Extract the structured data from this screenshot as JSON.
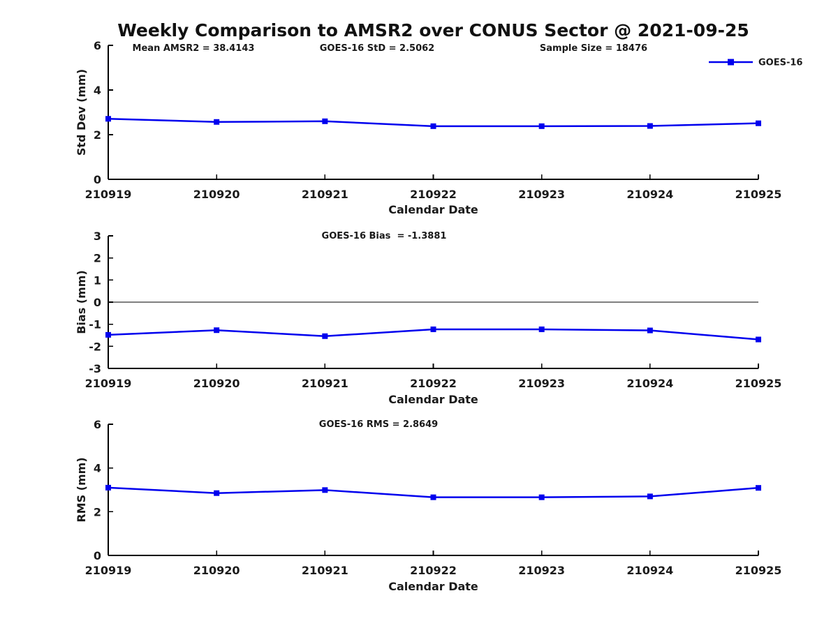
{
  "title": "Weekly Comparison to AMSR2 over CONUS Sector @ 2021-09-25",
  "legend": {
    "label": "GOES-16",
    "marker": "square-icon"
  },
  "colors": {
    "line": "#0000EE",
    "axis": "#000000",
    "text": "#1a1a1a",
    "background": "#FFFFFF"
  },
  "chart_data": [
    {
      "type": "line",
      "name": "std-dev",
      "ylabel": "Std Dev (mm)",
      "xlabel": "Calendar Date",
      "ylim": [
        0,
        6
      ],
      "yticks": [
        0,
        2,
        4,
        6
      ],
      "categories": [
        "210919",
        "210920",
        "210921",
        "210922",
        "210923",
        "210924",
        "210925"
      ],
      "series": [
        {
          "name": "GOES-16",
          "values": [
            2.71,
            2.57,
            2.6,
            2.38,
            2.38,
            2.39,
            2.51
          ]
        }
      ],
      "annotations": [
        "Mean AMSR2 = 38.4143",
        "GOES-16 StD = 2.5062",
        "Sample Size = 18476"
      ],
      "zero_line": false,
      "grid": false,
      "legend_position": "top-right",
      "marker": "square"
    },
    {
      "type": "line",
      "name": "bias",
      "ylabel": "Bias (mm)",
      "xlabel": "Calendar Date",
      "ylim": [
        -3,
        3
      ],
      "yticks": [
        -3,
        -2,
        -1,
        0,
        1,
        2,
        3
      ],
      "categories": [
        "210919",
        "210920",
        "210921",
        "210922",
        "210923",
        "210924",
        "210925"
      ],
      "series": [
        {
          "name": "GOES-16",
          "values": [
            -1.48,
            -1.27,
            -1.54,
            -1.23,
            -1.23,
            -1.28,
            -1.69
          ]
        }
      ],
      "annotations": [
        "GOES-16 Bias  = -1.3881"
      ],
      "zero_line": true,
      "grid": false,
      "marker": "square"
    },
    {
      "type": "line",
      "name": "rms",
      "ylabel": "RMS (mm)",
      "xlabel": "Calendar Date",
      "ylim": [
        0,
        6
      ],
      "yticks": [
        0,
        2,
        4,
        6
      ],
      "categories": [
        "210919",
        "210920",
        "210921",
        "210922",
        "210923",
        "210924",
        "210925"
      ],
      "series": [
        {
          "name": "GOES-16",
          "values": [
            3.1,
            2.85,
            2.99,
            2.66,
            2.66,
            2.7,
            3.09
          ]
        }
      ],
      "annotations": [
        "GOES-16 RMS = 2.8649"
      ],
      "zero_line": false,
      "grid": false,
      "marker": "square"
    }
  ]
}
